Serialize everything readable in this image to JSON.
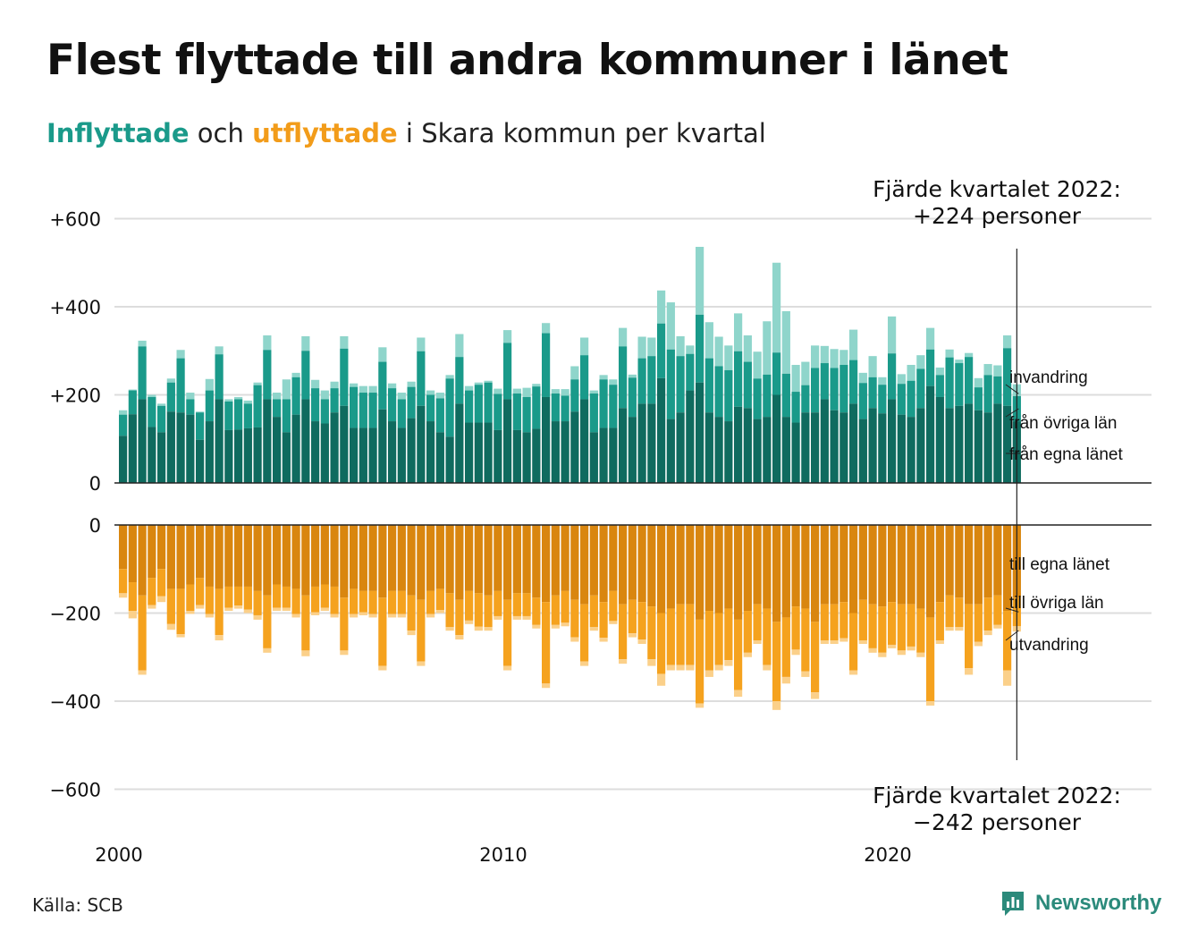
{
  "title": "Flest flyttade till andra kommuner i länet",
  "subtitle": {
    "part1": "Inflyttade",
    "part2": " och ",
    "part3": "utflyttade",
    "part4": " i Skara kommun per kvartal"
  },
  "source": "Källa: SCB",
  "brand": "Newsworthy",
  "colors": {
    "in_egna": "#0f6b5f",
    "in_ovriga": "#1a9a8a",
    "in_invandring": "#8fd5cb",
    "out_egna": "#d9860f",
    "out_ovriga": "#f5a21e",
    "out_utvandring": "#fbd08a",
    "grid": "#dddddd",
    "axis": "#222222"
  },
  "annotations": {
    "top_line1": "Fjärde kvartalet 2022:",
    "top_line2": "+224 personer",
    "bottom_line1": "Fjärde kvartalet 2022:",
    "bottom_line2": "−242 personer"
  },
  "chart_data": {
    "type": "bar",
    "stacked": true,
    "x_start": "2000 Q1",
    "x_ticks": [
      "2000",
      "2010",
      "2020"
    ],
    "in_panel": {
      "ylim": [
        0,
        600
      ],
      "ticks": [
        {
          "v": 0,
          "label": "0"
        },
        {
          "v": 200,
          "label": "+200"
        },
        {
          "v": 400,
          "label": "+400"
        },
        {
          "v": 600,
          "label": "+600"
        }
      ],
      "legend": [
        "invandring",
        "från övriga län",
        "från egna länet"
      ],
      "totals": [
        165,
        212,
        323,
        200,
        180,
        237,
        302,
        205,
        162,
        236,
        310,
        190,
        195,
        187,
        228,
        335,
        205,
        235,
        250,
        333,
        234,
        210,
        230,
        333,
        226,
        220,
        220,
        308,
        226,
        205,
        230,
        330,
        210,
        205,
        245,
        338,
        220,
        228,
        232,
        214,
        347,
        214,
        216,
        225,
        363,
        213,
        213,
        265,
        330,
        210,
        245,
        235,
        352,
        246,
        332,
        330,
        437,
        410,
        333,
        312,
        536,
        365,
        332,
        312,
        385,
        335,
        298,
        367,
        500,
        390,
        268,
        275,
        312,
        311,
        304,
        302,
        348,
        250,
        288,
        240,
        378,
        247,
        268,
        290,
        352,
        262,
        303,
        280,
        295,
        238,
        270,
        267,
        335,
        224
      ],
      "egna": [
        107,
        156,
        190,
        127,
        115,
        162,
        160,
        155,
        98,
        140,
        190,
        120,
        121,
        124,
        126,
        190,
        150,
        115,
        155,
        190,
        140,
        135,
        160,
        175,
        125,
        125,
        125,
        167,
        140,
        125,
        147,
        175,
        140,
        115,
        105,
        180,
        137,
        137,
        137,
        120,
        190,
        120,
        115,
        123,
        195,
        140,
        140,
        162,
        190,
        115,
        125,
        125,
        170,
        150,
        180,
        180,
        238,
        145,
        160,
        210,
        228,
        160,
        150,
        140,
        173,
        170,
        145,
        150,
        200,
        150,
        137,
        160,
        160,
        190,
        165,
        160,
        180,
        145,
        170,
        158,
        190,
        155,
        150,
        170,
        220,
        195,
        170,
        175,
        180,
        165,
        160,
        180,
        175,
        140
      ],
      "ovriga": [
        155,
        210,
        310,
        195,
        175,
        228,
        283,
        190,
        160,
        210,
        292,
        185,
        190,
        180,
        222,
        302,
        190,
        190,
        240,
        300,
        215,
        190,
        215,
        305,
        218,
        205,
        205,
        275,
        215,
        190,
        218,
        299,
        200,
        192,
        237,
        286,
        210,
        223,
        228,
        202,
        318,
        203,
        195,
        219,
        340,
        203,
        198,
        235,
        290,
        203,
        235,
        223,
        310,
        239,
        283,
        288,
        362,
        303,
        288,
        293,
        382,
        283,
        265,
        256,
        299,
        275,
        237,
        246,
        296,
        248,
        207,
        222,
        261,
        272,
        261,
        268,
        279,
        227,
        240,
        223,
        294,
        225,
        232,
        259,
        303,
        245,
        285,
        272,
        286,
        217,
        245,
        242,
        306,
        197
      ]
    },
    "out_panel": {
      "ylim": [
        -600,
        0
      ],
      "ticks": [
        {
          "v": 0,
          "label": "0"
        },
        {
          "v": -200,
          "label": "−200"
        },
        {
          "v": -400,
          "label": "−400"
        },
        {
          "v": -600,
          "label": "−600"
        }
      ],
      "legend": [
        "till egna länet",
        "till övriga län",
        "utvandring"
      ],
      "totals": [
        -165,
        -212,
        -340,
        -190,
        -175,
        -238,
        -255,
        -202,
        -190,
        -210,
        -262,
        -195,
        -190,
        -200,
        -215,
        -290,
        -195,
        -195,
        -210,
        -298,
        -205,
        -195,
        -210,
        -295,
        -210,
        -205,
        -210,
        -330,
        -210,
        -210,
        -250,
        -320,
        -210,
        -200,
        -240,
        -260,
        -225,
        -240,
        -240,
        -215,
        -330,
        -215,
        -215,
        -235,
        -370,
        -235,
        -230,
        -265,
        -320,
        -240,
        -265,
        -225,
        -315,
        -255,
        -270,
        -320,
        -365,
        -330,
        -330,
        -330,
        -415,
        -345,
        -330,
        -320,
        -390,
        -300,
        -270,
        -330,
        -420,
        -360,
        -295,
        -345,
        -395,
        -270,
        -270,
        -265,
        -340,
        -270,
        -290,
        -300,
        -280,
        -295,
        -285,
        -300,
        -410,
        -270,
        -240,
        -240,
        -340,
        -275,
        -250,
        -235,
        -365,
        -242
      ],
      "egna": [
        -100,
        -130,
        -160,
        -120,
        -100,
        -145,
        -145,
        -135,
        -120,
        -140,
        -145,
        -140,
        -140,
        -140,
        -150,
        -160,
        -135,
        -140,
        -145,
        -160,
        -140,
        -135,
        -140,
        -165,
        -145,
        -150,
        -150,
        -165,
        -150,
        -150,
        -160,
        -170,
        -150,
        -145,
        -155,
        -170,
        -150,
        -155,
        -160,
        -150,
        -170,
        -155,
        -155,
        -165,
        -175,
        -160,
        -150,
        -170,
        -180,
        -160,
        -175,
        -150,
        -180,
        -170,
        -175,
        -185,
        -200,
        -190,
        -180,
        -180,
        -215,
        -195,
        -200,
        -190,
        -215,
        -195,
        -180,
        -190,
        -220,
        -210,
        -185,
        -190,
        -220,
        -180,
        -180,
        -175,
        -200,
        -170,
        -180,
        -185,
        -175,
        -180,
        -180,
        -190,
        -210,
        -175,
        -160,
        -165,
        -180,
        -180,
        -165,
        -160,
        -195,
        -165
      ],
      "ovriga": [
        -155,
        -195,
        -330,
        -182,
        -162,
        -225,
        -248,
        -195,
        -182,
        -202,
        -250,
        -188,
        -183,
        -192,
        -205,
        -280,
        -188,
        -188,
        -202,
        -285,
        -198,
        -188,
        -202,
        -285,
        -202,
        -198,
        -202,
        -320,
        -202,
        -202,
        -240,
        -310,
        -202,
        -193,
        -232,
        -250,
        -217,
        -231,
        -232,
        -207,
        -320,
        -207,
        -207,
        -227,
        -360,
        -227,
        -222,
        -255,
        -310,
        -232,
        -256,
        -218,
        -305,
        -246,
        -260,
        -305,
        -338,
        -318,
        -318,
        -318,
        -405,
        -330,
        -318,
        -307,
        -375,
        -290,
        -262,
        -318,
        -400,
        -345,
        -283,
        -332,
        -380,
        -262,
        -262,
        -257,
        -330,
        -262,
        -280,
        -290,
        -272,
        -285,
        -276,
        -290,
        -400,
        -262,
        -232,
        -232,
        -325,
        -265,
        -240,
        -227,
        -330,
        -230
      ]
    }
  }
}
